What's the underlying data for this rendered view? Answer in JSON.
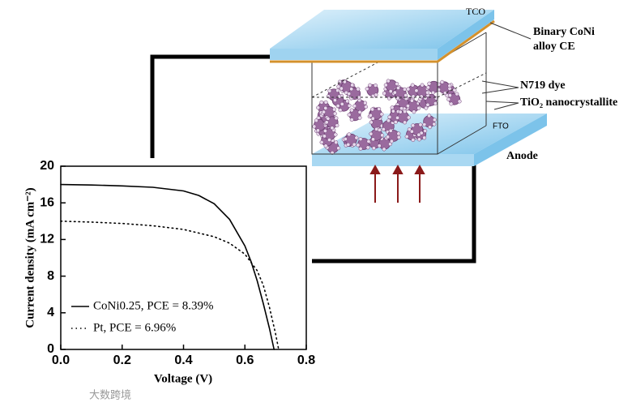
{
  "chart_data": {
    "type": "line",
    "xlabel": "Voltage (V)",
    "ylabel": "Current density (mA cm⁻²)",
    "xlim": [
      0,
      0.8
    ],
    "ylim": [
      0,
      20
    ],
    "xticks": [
      {
        "value": 0,
        "label": "0.0"
      },
      0.2,
      0.4,
      0.6,
      0.8
    ],
    "yticks": [
      0,
      4,
      8,
      12,
      16,
      20
    ],
    "series": [
      {
        "name": "CoNi0.25, PCE = 8.39%",
        "color": "#000000",
        "style": "solid",
        "x": [
          0,
          0.1,
          0.2,
          0.3,
          0.4,
          0.45,
          0.5,
          0.55,
          0.6,
          0.62,
          0.64,
          0.66,
          0.68,
          0.695
        ],
        "values": [
          18,
          17.95,
          17.85,
          17.7,
          17.3,
          16.8,
          15.9,
          14.2,
          11.3,
          9.6,
          7.5,
          5.0,
          2.3,
          0
        ]
      },
      {
        "name": "Pt, PCE = 6.96%",
        "color": "#000000",
        "style": "dotted",
        "x": [
          0,
          0.1,
          0.2,
          0.3,
          0.4,
          0.5,
          0.55,
          0.6,
          0.64,
          0.66,
          0.68,
          0.7,
          0.71
        ],
        "values": [
          14,
          13.9,
          13.75,
          13.5,
          13.1,
          12.3,
          11.6,
          10.4,
          8.6,
          7.0,
          4.6,
          1.7,
          0
        ]
      }
    ]
  },
  "diagram": {
    "tco": "TCO",
    "ce_line1": "Binary CoNi",
    "ce_line2": "alloy CE",
    "dye": "N719 dye",
    "tio2": "TiO₂ nanocrystallite",
    "fto": "FTO",
    "anode": "Anode"
  },
  "watermark": "大数跨境"
}
